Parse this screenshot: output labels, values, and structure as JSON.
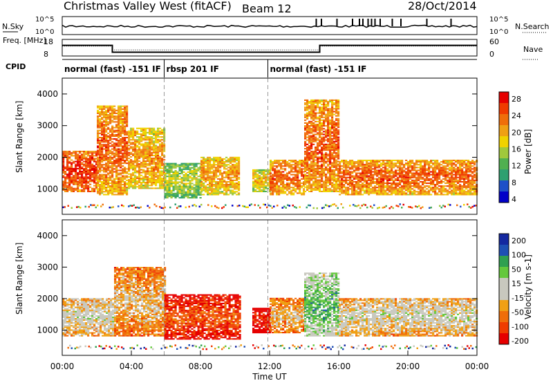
{
  "header": {
    "title": "Christmas Valley West (fitACF)",
    "beam": "Beam 12",
    "date": "28/Oct/2014"
  },
  "chart_data": [
    {
      "type": "line",
      "panel": "noise",
      "left_label": "N.Sky",
      "left_ticks": [
        "10^5",
        "10^0"
      ],
      "right_ticks": [
        "10^5",
        "10^0"
      ],
      "right_label": "N.Search",
      "x_range": [
        "00:00",
        "24:00"
      ],
      "spikes_hours": [
        14.7,
        15.0,
        15.9,
        16.8,
        17.2,
        17.4,
        17.7,
        17.9,
        18.1,
        18.4,
        19.1,
        19.6,
        21.1,
        22.5
      ]
    },
    {
      "type": "line",
      "panel": "frequency",
      "left_label": "Freq. [MHz]",
      "left_ticks": [
        "18",
        "8"
      ],
      "right_ticks": [
        "60",
        "0"
      ],
      "right_label": "Nave",
      "freq_steps": [
        {
          "start": 0,
          "end": 2.9,
          "value": 14.4
        },
        {
          "start": 2.9,
          "end": 14.9,
          "value": 10.3
        },
        {
          "start": 14.9,
          "end": 24,
          "value": 14.4
        }
      ],
      "nave_steps": [
        {
          "start": 0,
          "end": 2.9,
          "value": 36
        },
        {
          "start": 2.9,
          "end": 14.9,
          "value": 22
        },
        {
          "start": 14.9,
          "end": 24,
          "value": 36
        }
      ]
    },
    {
      "type": "table",
      "panel": "cpid",
      "label": "CPID",
      "segments": [
        {
          "start": 0,
          "end": 5.9,
          "text": "normal (fast) -151 IF"
        },
        {
          "start": 5.9,
          "end": 11.9,
          "text": "rbsp 201 IF"
        },
        {
          "start": 11.9,
          "end": 24,
          "text": "normal (fast) -151 IF"
        }
      ]
    },
    {
      "type": "heatmap",
      "panel": "power",
      "ylabel": "Slant Range [km]",
      "yticks": [
        1000,
        2000,
        3000,
        4000
      ],
      "ylim": [
        200,
        4500
      ],
      "xlim": [
        0,
        24
      ],
      "colorbar": {
        "label": "Power [dB]",
        "ticks": [
          "28",
          "24",
          "20",
          "16",
          "12",
          "8",
          "4"
        ],
        "colors": [
          "#0000c8",
          "#1e50c8",
          "#2fa070",
          "#50b050",
          "#a0c83c",
          "#f0d200",
          "#f0a014",
          "#f06e0a",
          "#f03c00",
          "#e60000"
        ]
      },
      "echo_bands": [
        {
          "start": 0.0,
          "end": 2.0,
          "lo": 900,
          "hi": 2200,
          "level": 8
        },
        {
          "start": 2.0,
          "end": 3.8,
          "lo": 800,
          "hi": 3600,
          "level": 7
        },
        {
          "start": 3.8,
          "end": 5.9,
          "lo": 1000,
          "hi": 2900,
          "level": 6
        },
        {
          "start": 5.9,
          "end": 8.0,
          "lo": 700,
          "hi": 1800,
          "level": 4
        },
        {
          "start": 8.0,
          "end": 10.2,
          "lo": 800,
          "hi": 2000,
          "level": 6
        },
        {
          "start": 11.0,
          "end": 12.0,
          "lo": 900,
          "hi": 1600,
          "level": 5
        },
        {
          "start": 12.0,
          "end": 14.0,
          "lo": 800,
          "hi": 1900,
          "level": 7
        },
        {
          "start": 14.0,
          "end": 16.0,
          "lo": 900,
          "hi": 3800,
          "level": 7
        },
        {
          "start": 16.0,
          "end": 24.0,
          "lo": 800,
          "hi": 1900,
          "level": 7
        }
      ]
    },
    {
      "type": "heatmap",
      "panel": "velocity",
      "ylabel": "Slant Range [km]",
      "yticks": [
        1000,
        2000,
        3000,
        4000
      ],
      "ylim": [
        200,
        4500
      ],
      "xlim": [
        0,
        24
      ],
      "xlabel": "Time UT",
      "xticks": [
        "00:00",
        "04:00",
        "08:00",
        "12:00",
        "16:00",
        "20:00",
        "00:00"
      ],
      "colorbar": {
        "label": "Velocity [m s-1]",
        "ticks": [
          "200",
          "100",
          "50",
          "15",
          "-15",
          "-50",
          "-100",
          "-200"
        ],
        "colors": [
          "#e60000",
          "#f03c00",
          "#f06e0a",
          "#f0a014",
          "#c8c8be",
          "#c8c8be",
          "#64c83c",
          "#2fa050",
          "#1e50b4",
          "#1428a0"
        ]
      },
      "echo_bands": [
        {
          "start": 0.0,
          "end": 3.0,
          "lo": 800,
          "hi": 2000,
          "level": 4
        },
        {
          "start": 3.0,
          "end": 5.9,
          "lo": 800,
          "hi": 3000,
          "level": 3
        },
        {
          "start": 5.9,
          "end": 10.3,
          "lo": 700,
          "hi": 2100,
          "level": 1
        },
        {
          "start": 11.0,
          "end": 12.0,
          "lo": 900,
          "hi": 1700,
          "level": 0
        },
        {
          "start": 12.0,
          "end": 14.0,
          "lo": 900,
          "hi": 2000,
          "level": 3
        },
        {
          "start": 14.0,
          "end": 16.0,
          "lo": 800,
          "hi": 2800,
          "level": 6
        },
        {
          "start": 16.0,
          "end": 24.0,
          "lo": 800,
          "hi": 2000,
          "level": 4
        }
      ]
    }
  ]
}
